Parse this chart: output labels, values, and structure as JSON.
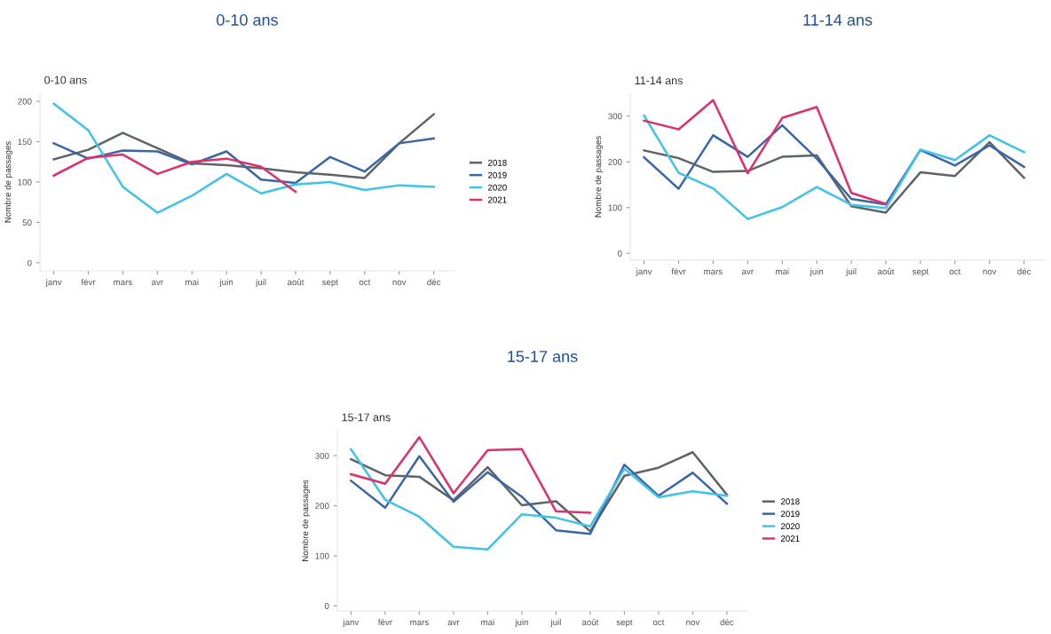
{
  "chart_data": [
    {
      "type": "line",
      "title": "0-10 ans",
      "subtitle": "0-10 ans",
      "ylabel": "Nombre de passages",
      "categories": [
        "janv",
        "févr",
        "mars",
        "avr",
        "mai",
        "juin",
        "juil",
        "août",
        "sept",
        "oct",
        "nov",
        "déc"
      ],
      "ylim": [
        -10,
        210
      ],
      "yticks": [
        0,
        50,
        100,
        150,
        200
      ],
      "grid": false,
      "legend": "right",
      "marker": "none",
      "line_style": "solid",
      "series": [
        {
          "name": "2018",
          "color": "#5f6366",
          "values": [
            128,
            140,
            161,
            142,
            123,
            121,
            117,
            112,
            109,
            105,
            148,
            184
          ]
        },
        {
          "name": "2019",
          "color": "#3a66a8",
          "values": [
            148,
            129,
            139,
            138,
            122,
            138,
            103,
            99,
            131,
            113,
            148,
            154
          ]
        },
        {
          "name": "2020",
          "color": "#3ec3ea",
          "values": [
            197,
            164,
            94,
            62,
            83,
            110,
            86,
            97,
            100,
            90,
            96,
            94
          ]
        },
        {
          "name": "2021",
          "color": "#e0306a",
          "values": [
            108,
            130,
            134,
            110,
            125,
            129,
            119,
            88,
            null,
            null,
            null,
            null
          ]
        }
      ]
    },
    {
      "type": "line",
      "title": "11-14 ans",
      "subtitle": "11-14 ans",
      "ylabel": "Nombre de passages",
      "categories": [
        "janv",
        "févr",
        "mars",
        "avr",
        "mai",
        "juin",
        "juil",
        "août",
        "sept",
        "oct",
        "nov",
        "déc"
      ],
      "ylim": [
        -15,
        350
      ],
      "yticks": [
        0,
        100,
        200,
        300
      ],
      "grid": false,
      "legend": false,
      "marker": "none",
      "line_style": "solid",
      "series": [
        {
          "color": "#5f6366",
          "values": [
            225,
            208,
            178,
            180,
            211,
            214,
            103,
            89,
            177,
            169,
            243,
            165
          ]
        },
        {
          "color": "#3a66a8",
          "values": [
            210,
            141,
            258,
            211,
            280,
            207,
            119,
            107,
            226,
            192,
            236,
            189
          ]
        },
        {
          "color": "#3ec3ea",
          "values": [
            301,
            176,
            142,
            75,
            101,
            145,
            106,
            99,
            227,
            204,
            258,
            221
          ]
        },
        {
          "color": "#e0306a",
          "values": [
            290,
            271,
            335,
            175,
            296,
            320,
            132,
            108,
            null,
            null,
            null,
            null
          ]
        }
      ]
    },
    {
      "type": "line",
      "title": "15-17 ans",
      "subtitle": "15-17 ans",
      "ylabel": "Nombre de passages",
      "categories": [
        "janv",
        "févr",
        "mars",
        "avr",
        "mai",
        "juin",
        "juil",
        "août",
        "sept",
        "oct",
        "nov",
        "déc"
      ],
      "ylim": [
        -10,
        350
      ],
      "yticks": [
        0,
        100,
        200,
        300
      ],
      "grid": false,
      "legend": "right",
      "marker": "none",
      "line_style": "solid",
      "series": [
        {
          "name": "2018",
          "color": "#5f6366",
          "values": [
            293,
            261,
            258,
            211,
            277,
            201,
            209,
            149,
            260,
            276,
            307,
            222
          ]
        },
        {
          "name": "2019",
          "color": "#3a66a8",
          "values": [
            250,
            196,
            299,
            208,
            267,
            218,
            151,
            144,
            282,
            220,
            266,
            204
          ]
        },
        {
          "name": "2020",
          "color": "#3ec3ea",
          "values": [
            313,
            212,
            178,
            118,
            113,
            183,
            176,
            159,
            274,
            217,
            229,
            220
          ]
        },
        {
          "name": "2021",
          "color": "#e0306a",
          "values": [
            263,
            244,
            337,
            225,
            311,
            313,
            189,
            186,
            null,
            null,
            null,
            null
          ]
        }
      ]
    }
  ]
}
